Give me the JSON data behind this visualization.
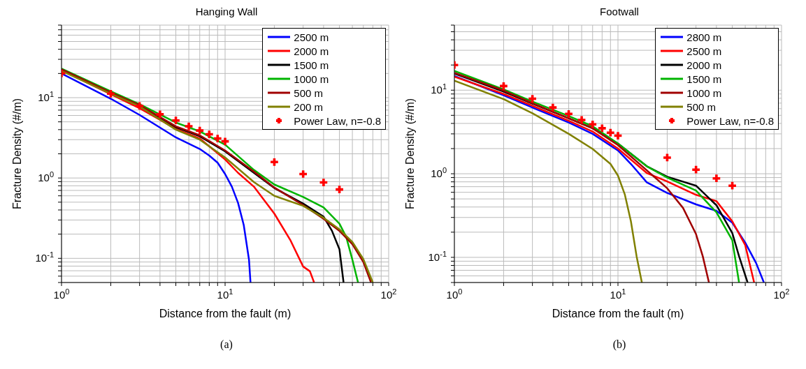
{
  "chart_data": [
    {
      "type": "line",
      "title": "Hanging Wall",
      "xlabel": "Distance from the fault (m)",
      "ylabel": "Fracture Density (#/m)",
      "log": "xy",
      "grid": true,
      "legend": "top right",
      "annotations": [
        "(a)"
      ],
      "xlim": [
        1,
        100
      ],
      "xticks": [
        {
          "value": 1,
          "label": "10$^{0}$"
        },
        {
          "value": 2,
          "label": null
        },
        {
          "value": 3,
          "label": null
        },
        {
          "value": 4,
          "label": null
        },
        {
          "value": 5,
          "label": null
        },
        {
          "value": 6,
          "label": null
        },
        {
          "value": 7,
          "label": null
        },
        {
          "value": 8,
          "label": null
        },
        {
          "value": 9,
          "label": null
        },
        {
          "value": 10,
          "label": "10$^{1}$"
        },
        {
          "value": 20,
          "label": null
        },
        {
          "value": 30,
          "label": null
        },
        {
          "value": 40,
          "label": null
        },
        {
          "value": 50,
          "label": null
        },
        {
          "value": 60,
          "label": null
        },
        {
          "value": 70,
          "label": null
        },
        {
          "value": 80,
          "label": null
        },
        {
          "value": 90,
          "label": null
        },
        {
          "value": 100,
          "label": "10$^{2}$"
        }
      ],
      "ylim": [
        0.05,
        80
      ],
      "yticks": [
        {
          "value": 0.05,
          "label": null
        },
        {
          "value": 0.06,
          "label": null
        },
        {
          "value": 0.07,
          "label": null
        },
        {
          "value": 0.08,
          "label": null
        },
        {
          "value": 0.09,
          "label": null
        },
        {
          "value": 0.1,
          "label": "10$^{-1}$"
        },
        {
          "value": 0.2,
          "label": null
        },
        {
          "value": 0.3,
          "label": null
        },
        {
          "value": 0.4,
          "label": null
        },
        {
          "value": 0.5,
          "label": null
        },
        {
          "value": 0.6,
          "label": null
        },
        {
          "value": 0.7,
          "label": null
        },
        {
          "value": 0.8,
          "label": null
        },
        {
          "value": 0.9,
          "label": null
        },
        {
          "value": 1,
          "label": "10$^{0}$"
        },
        {
          "value": 2,
          "label": null
        },
        {
          "value": 3,
          "label": null
        },
        {
          "value": 4,
          "label": null
        },
        {
          "value": 5,
          "label": null
        },
        {
          "value": 6,
          "label": null
        },
        {
          "value": 7,
          "label": null
        },
        {
          "value": 8,
          "label": null
        },
        {
          "value": 9,
          "label": null
        },
        {
          "value": 10,
          "label": "10$^{1}$"
        },
        {
          "value": 20,
          "label": null
        },
        {
          "value": 30,
          "label": null
        },
        {
          "value": 40,
          "label": null
        },
        {
          "value": 50,
          "label": null
        },
        {
          "value": 60,
          "label": null
        },
        {
          "value": 70,
          "label": null
        },
        {
          "value": 80,
          "label": null
        }
      ],
      "series": [
        {
          "name": "2500 m",
          "color": "#0000ff",
          "x": [
            1,
            2,
            3,
            5,
            7,
            8,
            9,
            10,
            11,
            12,
            13,
            14,
            14.3
          ],
          "values": [
            20,
            9.7,
            6.1,
            3.2,
            2.3,
            1.9,
            1.55,
            1.12,
            0.78,
            0.49,
            0.26,
            0.096,
            0.05
          ]
        },
        {
          "name": "2000 m",
          "color": "#ff0000",
          "x": [
            1,
            2,
            3,
            5,
            7,
            10,
            12,
            15,
            20,
            25,
            30,
            33,
            35
          ],
          "values": [
            22,
            11,
            7.4,
            4.1,
            3.1,
            1.7,
            1.16,
            0.78,
            0.36,
            0.17,
            0.079,
            0.069,
            0.05
          ]
        },
        {
          "name": "1500 m",
          "color": "#000000",
          "x": [
            1,
            2,
            3,
            5,
            7,
            10,
            15,
            20,
            30,
            40,
            45,
            50,
            53
          ],
          "values": [
            22,
            11.5,
            8,
            4.3,
            3.3,
            2.15,
            1.16,
            0.75,
            0.48,
            0.33,
            0.22,
            0.13,
            0.05
          ]
        },
        {
          "name": "1000 m",
          "color": "#00b400",
          "x": [
            1,
            2,
            3,
            5,
            7,
            10,
            15,
            20,
            30,
            40,
            50,
            55,
            60,
            65
          ],
          "values": [
            23,
            12,
            8.3,
            4.9,
            3.8,
            2.6,
            1.26,
            0.83,
            0.58,
            0.43,
            0.27,
            0.185,
            0.096,
            0.05
          ]
        },
        {
          "name": "500 m",
          "color": "#a00000",
          "x": [
            1,
            2,
            3,
            5,
            7,
            10,
            15,
            20,
            30,
            40,
            50,
            60,
            70,
            78
          ],
          "values": [
            22.5,
            11.6,
            8.1,
            4.4,
            3.4,
            2.2,
            1.2,
            0.76,
            0.46,
            0.31,
            0.22,
            0.15,
            0.09,
            0.05
          ]
        },
        {
          "name": "200 m",
          "color": "#808000",
          "x": [
            1,
            2,
            3,
            5,
            7,
            10,
            15,
            20,
            30,
            40,
            50,
            60,
            70,
            80
          ],
          "values": [
            21.5,
            11.2,
            7.8,
            4,
            3,
            1.8,
            0.89,
            0.6,
            0.45,
            0.32,
            0.23,
            0.16,
            0.098,
            0.05
          ]
        },
        {
          "name": "Power Law, n=-0.8",
          "color": "#ff0000",
          "type": "scatter",
          "marker": "cross",
          "x": [
            1,
            2,
            3,
            4,
            5,
            6,
            7,
            8,
            9,
            10,
            20,
            30,
            40,
            50
          ],
          "values": [
            20,
            11.2,
            7.9,
            6.2,
            5.2,
            4.4,
            3.9,
            3.5,
            3.1,
            2.85,
            1.58,
            1.12,
            0.88,
            0.72
          ]
        }
      ]
    },
    {
      "type": "line",
      "title": "Footwall",
      "xlabel": "Distance from the fault (m)",
      "ylabel": "Fracture Density (#/m)",
      "log": "xy",
      "grid": true,
      "legend": "top right",
      "annotations": [
        "(b)"
      ],
      "xlim": [
        1,
        100
      ],
      "xticks": [
        {
          "value": 1,
          "label": "10$^{0}$"
        },
        {
          "value": 2,
          "label": null
        },
        {
          "value": 3,
          "label": null
        },
        {
          "value": 4,
          "label": null
        },
        {
          "value": 5,
          "label": null
        },
        {
          "value": 6,
          "label": null
        },
        {
          "value": 7,
          "label": null
        },
        {
          "value": 8,
          "label": null
        },
        {
          "value": 9,
          "label": null
        },
        {
          "value": 10,
          "label": "10$^{1}$"
        },
        {
          "value": 20,
          "label": null
        },
        {
          "value": 30,
          "label": null
        },
        {
          "value": 40,
          "label": null
        },
        {
          "value": 50,
          "label": null
        },
        {
          "value": 60,
          "label": null
        },
        {
          "value": 70,
          "label": null
        },
        {
          "value": 80,
          "label": null
        },
        {
          "value": 90,
          "label": null
        },
        {
          "value": 100,
          "label": "10$^{2}$"
        }
      ],
      "ylim": [
        0.05,
        60
      ],
      "yticks": [
        {
          "value": 0.05,
          "label": null
        },
        {
          "value": 0.06,
          "label": null
        },
        {
          "value": 0.07,
          "label": null
        },
        {
          "value": 0.08,
          "label": null
        },
        {
          "value": 0.09,
          "label": null
        },
        {
          "value": 0.1,
          "label": "10$^{-1}$"
        },
        {
          "value": 0.2,
          "label": null
        },
        {
          "value": 0.3,
          "label": null
        },
        {
          "value": 0.4,
          "label": null
        },
        {
          "value": 0.5,
          "label": null
        },
        {
          "value": 0.6,
          "label": null
        },
        {
          "value": 0.7,
          "label": null
        },
        {
          "value": 0.8,
          "label": null
        },
        {
          "value": 0.9,
          "label": null
        },
        {
          "value": 1,
          "label": "10$^{0}$"
        },
        {
          "value": 2,
          "label": null
        },
        {
          "value": 3,
          "label": null
        },
        {
          "value": 4,
          "label": null
        },
        {
          "value": 5,
          "label": null
        },
        {
          "value": 6,
          "label": null
        },
        {
          "value": 7,
          "label": null
        },
        {
          "value": 8,
          "label": null
        },
        {
          "value": 9,
          "label": null
        },
        {
          "value": 10,
          "label": "10$^{1}$"
        },
        {
          "value": 20,
          "label": null
        },
        {
          "value": 30,
          "label": null
        },
        {
          "value": 40,
          "label": null
        },
        {
          "value": 50,
          "label": null
        },
        {
          "value": 60,
          "label": null
        }
      ],
      "series": [
        {
          "name": "2800 m",
          "color": "#0000ff",
          "x": [
            1,
            2,
            3,
            5,
            7,
            10,
            12,
            15,
            20,
            30,
            40,
            50,
            60,
            70,
            78
          ],
          "values": [
            14.8,
            8.7,
            6.2,
            4.1,
            3,
            1.9,
            1.31,
            0.79,
            0.59,
            0.43,
            0.36,
            0.26,
            0.15,
            0.085,
            0.05
          ]
        },
        {
          "name": "2500 m",
          "color": "#ff0000",
          "x": [
            1,
            2,
            3,
            5,
            7,
            10,
            15,
            20,
            30,
            40,
            50,
            60,
            68
          ],
          "values": [
            14.5,
            9,
            6.5,
            4.3,
            3.2,
            2,
            1.02,
            0.81,
            0.56,
            0.47,
            0.27,
            0.14,
            0.05
          ]
        },
        {
          "name": "2000 m",
          "color": "#000000",
          "x": [
            1,
            2,
            3,
            5,
            7,
            10,
            15,
            20,
            30,
            40,
            50,
            55,
            62
          ],
          "values": [
            15.8,
            9.6,
            6.9,
            4.6,
            3.5,
            2.3,
            1.23,
            0.92,
            0.72,
            0.42,
            0.195,
            0.103,
            0.05
          ]
        },
        {
          "name": "1500 m",
          "color": "#00b400",
          "x": [
            1,
            2,
            3,
            5,
            7,
            10,
            15,
            20,
            30,
            40,
            50,
            55
          ],
          "values": [
            17,
            10.2,
            7.3,
            4.9,
            3.7,
            2.3,
            1.23,
            0.9,
            0.63,
            0.345,
            0.16,
            0.05
          ]
        },
        {
          "name": "1000 m",
          "color": "#a00000",
          "x": [
            1,
            2,
            3,
            5,
            7,
            10,
            15,
            20,
            25,
            30,
            33,
            36
          ],
          "values": [
            16.1,
            9.9,
            7,
            4.6,
            3.5,
            2.2,
            1.1,
            0.67,
            0.39,
            0.19,
            0.103,
            0.05
          ]
        },
        {
          "name": "500 m",
          "color": "#808000",
          "x": [
            1,
            2,
            3,
            5,
            7,
            9,
            10,
            11,
            12,
            13,
            14
          ],
          "values": [
            13,
            7.8,
            5.3,
            3,
            1.98,
            1.31,
            0.95,
            0.57,
            0.27,
            0.103,
            0.05
          ]
        },
        {
          "name": "Power Law, n=-0.8",
          "color": "#ff0000",
          "type": "scatter",
          "marker": "cross",
          "x": [
            1,
            2,
            3,
            4,
            5,
            6,
            7,
            8,
            9,
            10,
            20,
            30,
            40,
            50
          ],
          "values": [
            20,
            11.2,
            7.9,
            6.2,
            5.2,
            4.4,
            3.9,
            3.5,
            3.1,
            2.85,
            1.56,
            1.12,
            0.88,
            0.72
          ]
        }
      ]
    }
  ]
}
